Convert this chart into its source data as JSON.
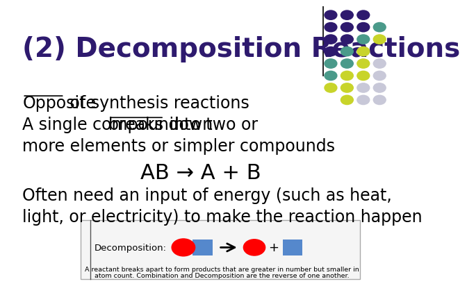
{
  "title": "(2) Decomposition Reactions",
  "title_color": "#2e1a6e",
  "title_fontsize": 28,
  "bg_color": "#ffffff",
  "line1_plain": " of synthesis reactions",
  "line1_underline": "Opposite",
  "line2_plain_before": "A single compound ",
  "line2_underline": "breaks down",
  "line2_plain_after": " into two or",
  "line3": "more elements or simpler compounds",
  "line4": "AB → A + B",
  "line5": "Often need an input of energy (such as heat,",
  "line6": "light, or electricity) to make the reaction happen",
  "body_color": "#000000",
  "body_fontsize": 17,
  "arrow_eq_fontsize": 22,
  "decomp_label": "Decomposition:",
  "decomp_caption1": "A reactant breaks apart to form products that are greater in number but smaller in",
  "decomp_caption2": "atom count. Combination and Decomposition are the reverse of one another.",
  "dot_colors": {
    "purple": "#2e1a6e",
    "teal": "#4a9a8a",
    "yellow_green": "#c8d42a",
    "light_gray": "#c8c8d8"
  }
}
